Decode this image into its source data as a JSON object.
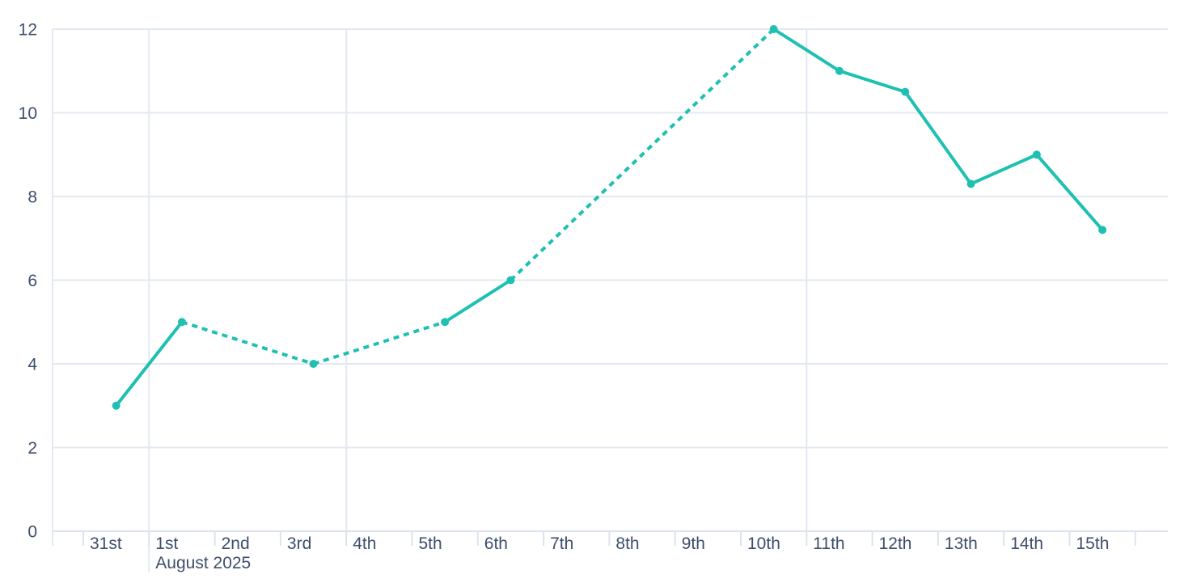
{
  "colors": {
    "accent": "#1ec0b2",
    "axis_text": "#3e4e6b",
    "gridline": "#e3e8f1",
    "axis_line": "#dde3ed",
    "background": "#ffffff"
  },
  "chart_data": {
    "type": "line",
    "title": "",
    "x_axis": {
      "tick_labels": [
        "31st",
        "1st",
        "2nd",
        "3rd",
        "4th",
        "5th",
        "6th",
        "7th",
        "8th",
        "9th",
        "10th",
        "11th",
        "12th",
        "13th",
        "14th",
        "15th"
      ],
      "month_caption": "August 2025",
      "month_caption_day_index": 1,
      "month_boundary_day_index": 1,
      "week_gridline_day_indices": [
        4,
        11
      ],
      "total_day_slots": 16
    },
    "y_axis": {
      "tick_labels": [
        "0",
        "2",
        "4",
        "6",
        "8",
        "10",
        "12"
      ],
      "tick_values": [
        0,
        2,
        4,
        6,
        8,
        10,
        12
      ],
      "min": 0,
      "max": 12,
      "grid": true
    },
    "legend": null,
    "series": [
      {
        "name": "daily-values",
        "color": "#1ec0b2",
        "marker": "circle",
        "points": [
          {
            "day": "31st",
            "day_index": 0,
            "value": 3
          },
          {
            "day": "1st",
            "day_index": 1,
            "value": 5
          },
          {
            "day": "3rd",
            "day_index": 3,
            "value": 4
          },
          {
            "day": "5th",
            "day_index": 5,
            "value": 5
          },
          {
            "day": "6th",
            "day_index": 6,
            "value": 6
          },
          {
            "day": "10th",
            "day_index": 10,
            "value": 12
          },
          {
            "day": "11th",
            "day_index": 11,
            "value": 11
          },
          {
            "day": "12th",
            "day_index": 12,
            "value": 10.5
          },
          {
            "day": "13th",
            "day_index": 13,
            "value": 8.3
          },
          {
            "day": "14th",
            "day_index": 14,
            "value": 9
          },
          {
            "day": "15th",
            "day_index": 15,
            "value": 7.2
          }
        ],
        "segment_styles": [
          "solid",
          "dashed",
          "dashed",
          "solid",
          "dashed",
          "solid",
          "solid",
          "solid",
          "solid",
          "solid"
        ]
      }
    ]
  }
}
